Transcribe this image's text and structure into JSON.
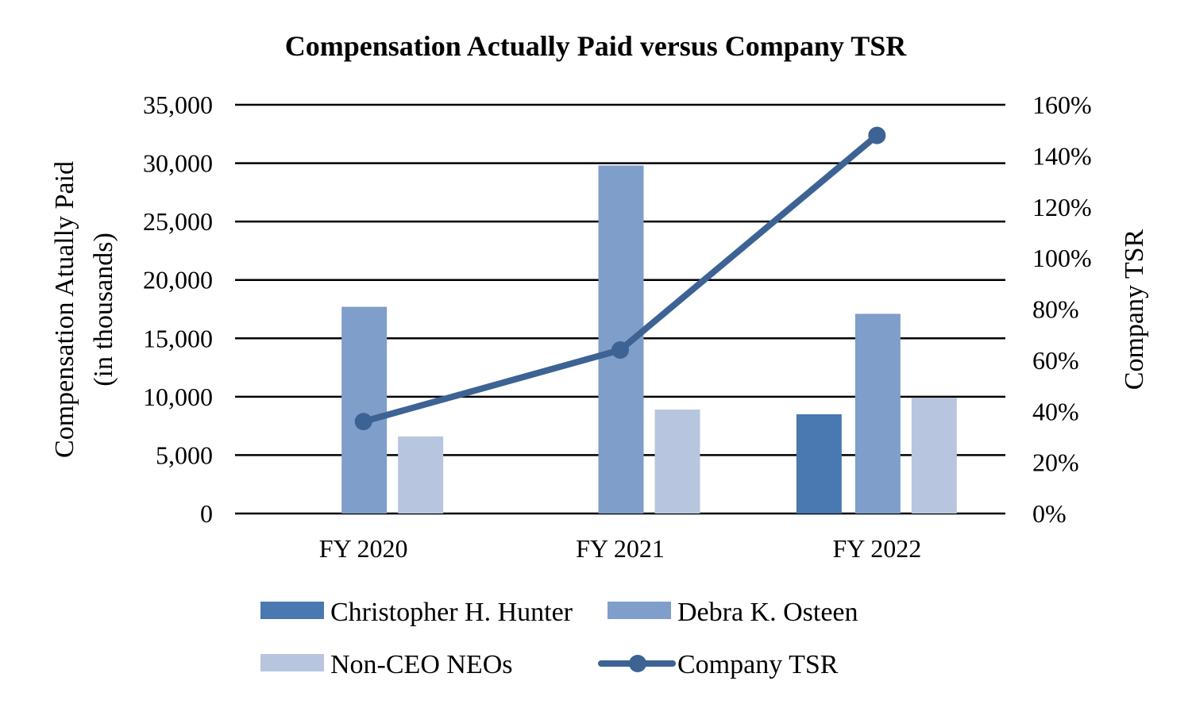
{
  "chart_data": {
    "type": "bar",
    "title": "Compensation Actually Paid versus Company TSR",
    "categories": [
      "FY 2020",
      "FY 2021",
      "FY 2022"
    ],
    "series": [
      {
        "name": "Christopher H. Hunter",
        "kind": "bar",
        "axis": "left",
        "color": "#4a78b0",
        "values": [
          null,
          null,
          8500
        ]
      },
      {
        "name": "Debra K. Osteen",
        "kind": "bar",
        "axis": "left",
        "color": "#7f9ec9",
        "values": [
          17700,
          29800,
          17100
        ]
      },
      {
        "name": "Non-CEO NEOs",
        "kind": "bar",
        "axis": "left",
        "color": "#b8c5de",
        "values": [
          6600,
          8900,
          9900
        ]
      },
      {
        "name": "Company TSR",
        "kind": "line",
        "axis": "right",
        "color": "#3d6394",
        "values": [
          36,
          64,
          148
        ]
      }
    ],
    "y_left": {
      "label_line1": "Compensation Atually Paid",
      "label_line2": "(in thousands)",
      "min": 0,
      "max": 35000,
      "step": 5000,
      "tick_labels": [
        "0",
        "5,000",
        "10,000",
        "15,000",
        "20,000",
        "25,000",
        "30,000",
        "35,000"
      ]
    },
    "y_right": {
      "label": "Company TSR",
      "min": 0,
      "max": 160,
      "step": 20,
      "tick_labels": [
        "0%",
        "20%",
        "40%",
        "60%",
        "80%",
        "100%",
        "120%",
        "140%",
        "160%"
      ]
    },
    "grid": true,
    "legend": {
      "position": "bottom",
      "entries": [
        "Christopher H. Hunter",
        "Debra K. Osteen",
        "Non-CEO NEOs",
        "Company TSR"
      ]
    }
  }
}
